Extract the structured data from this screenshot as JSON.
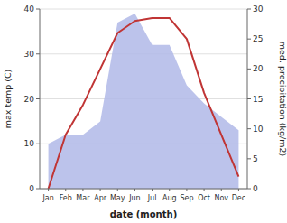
{
  "chart_data": {
    "type": "line",
    "xlabel": "date (month)",
    "ylabel": "max temp (C)",
    "y2label": "med. precipitation (kg/m2)",
    "categories": [
      "Jan",
      "Feb",
      "Mar",
      "Apr",
      "May",
      "Jun",
      "Jul",
      "Aug",
      "Sep",
      "Oct",
      "Nov",
      "Dec"
    ],
    "series": [
      {
        "type": "area",
        "color": "#b0b8e8",
        "values": [
          10,
          12,
          12,
          15,
          37,
          39,
          32,
          32,
          23,
          19,
          16,
          13
        ]
      },
      {
        "type": "line",
        "color": "#c03535",
        "axis": "y2",
        "values": [
          0,
          9,
          14,
          20,
          26,
          28,
          28.5,
          28.5,
          25,
          16,
          9,
          2
        ]
      }
    ],
    "ylim": [
      0,
      40
    ],
    "yticks": [
      0,
      10,
      20,
      30,
      40
    ],
    "y2lim": [
      0,
      30
    ],
    "y2ticks": [
      0,
      5,
      10,
      15,
      20,
      25,
      30
    ],
    "grid": true
  }
}
